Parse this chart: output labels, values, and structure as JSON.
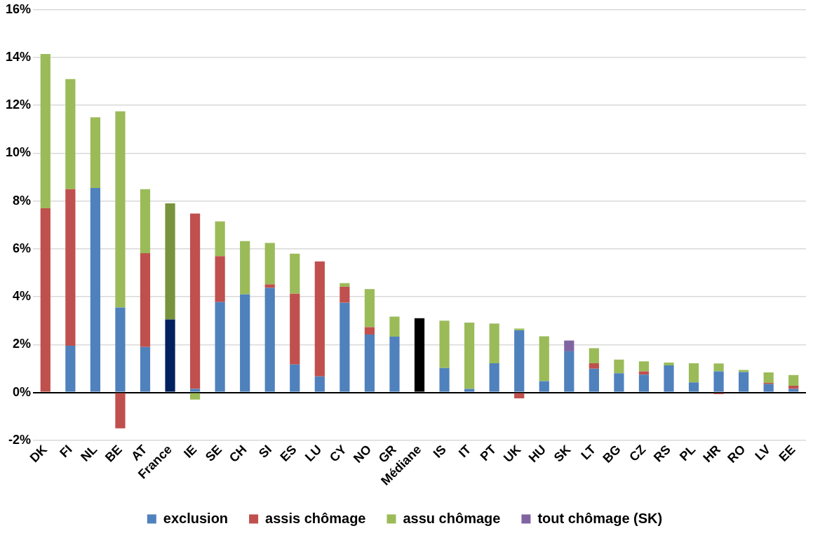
{
  "chart_data": {
    "type": "bar",
    "stacked": true,
    "categories": [
      "DK",
      "FI",
      "NL",
      "BE",
      "AT",
      "France",
      "IE",
      "SE",
      "CH",
      "SI",
      "ES",
      "LU",
      "CY",
      "NO",
      "GR",
      "Médiane",
      "IS",
      "IT",
      "PT",
      "UK",
      "HU",
      "SK",
      "LT",
      "BG",
      "CZ",
      "RS",
      "PL",
      "HR",
      "RO",
      "LV",
      "EE"
    ],
    "series": [
      {
        "name": "exclusion",
        "color": "#4f81bd",
        "colors": [
          "#4f81bd",
          "#4f81bd",
          "#4f81bd",
          "#4f81bd",
          "#4f81bd",
          "#002060",
          "#4f81bd",
          "#4f81bd",
          "#4f81bd",
          "#4f81bd",
          "#4f81bd",
          "#4f81bd",
          "#4f81bd",
          "#4f81bd",
          "#4f81bd",
          "#000000",
          "#4f81bd",
          "#4f81bd",
          "#4f81bd",
          "#4f81bd",
          "#4f81bd",
          "#4f81bd",
          "#4f81bd",
          "#4f81bd",
          "#4f81bd",
          "#4f81bd",
          "#4f81bd",
          "#4f81bd",
          "#4f81bd",
          "#4f81bd",
          "#4f81bd"
        ],
        "values": [
          0,
          1.95,
          8.55,
          3.55,
          1.9,
          3.05,
          0.15,
          3.78,
          4.1,
          4.37,
          1.17,
          0.67,
          3.75,
          2.42,
          2.33,
          3.1,
          1.02,
          0.15,
          1.22,
          2.6,
          0.47,
          1.72,
          0.99,
          0.8,
          0.74,
          1.13,
          0.42,
          0.88,
          0.85,
          0.35,
          0.15
        ]
      },
      {
        "name": "assis chômage",
        "color": "#c0504d",
        "values": [
          7.7,
          6.55,
          0,
          -1.5,
          3.92,
          0,
          7.33,
          1.92,
          0,
          0.15,
          2.96,
          4.81,
          0.67,
          0.31,
          0,
          0,
          0,
          0,
          0,
          -0.25,
          0,
          0,
          0.23,
          0,
          0.14,
          0,
          0,
          -0.07,
          0,
          0.05,
          0.13
        ]
      },
      {
        "name": "assu chômage",
        "color": "#9bbb59",
        "colors": [
          "#9bbb59",
          "#9bbb59",
          "#9bbb59",
          "#9bbb59",
          "#9bbb59",
          "#77933c",
          "#9bbb59",
          "#9bbb59",
          "#9bbb59",
          "#9bbb59",
          "#9bbb59",
          "#9bbb59",
          "#9bbb59",
          "#9bbb59",
          "#9bbb59",
          "#9bbb59",
          "#9bbb59",
          "#9bbb59",
          "#9bbb59",
          "#9bbb59",
          "#9bbb59",
          "#9bbb59",
          "#9bbb59",
          "#9bbb59",
          "#9bbb59",
          "#9bbb59",
          "#9bbb59",
          "#9bbb59",
          "#9bbb59",
          "#9bbb59",
          "#9bbb59"
        ],
        "values": [
          6.45,
          4.6,
          2.95,
          8.2,
          2.68,
          4.85,
          -0.3,
          1.45,
          2.23,
          1.73,
          1.67,
          0,
          0.15,
          1.59,
          0.84,
          0,
          1.98,
          2.77,
          1.66,
          0.07,
          1.88,
          0,
          0.63,
          0.57,
          0.42,
          0.12,
          0.8,
          0.33,
          0.09,
          0.44,
          0.45
        ]
      },
      {
        "name": "tout chômage (SK)",
        "color": "#8064a2",
        "values": [
          0,
          0,
          0,
          0,
          0,
          0,
          0,
          0,
          0,
          0,
          0,
          0,
          0,
          0,
          0,
          0,
          0,
          0,
          0,
          0,
          0,
          0.45,
          0,
          0,
          0,
          0,
          0,
          0,
          0,
          0,
          0
        ]
      }
    ],
    "ylim": [
      -2,
      16
    ],
    "yticks": [
      {
        "value": -2,
        "label": "-2%"
      },
      {
        "value": 0,
        "label": "0%"
      },
      {
        "value": 2,
        "label": "2%"
      },
      {
        "value": 4,
        "label": "4%"
      },
      {
        "value": 6,
        "label": "6%"
      },
      {
        "value": 8,
        "label": "8%"
      },
      {
        "value": 10,
        "label": "10%"
      },
      {
        "value": 12,
        "label": "12%"
      },
      {
        "value": 14,
        "label": "14%"
      },
      {
        "value": 16,
        "label": "16%"
      }
    ],
    "grid": "y",
    "legend": "bottom"
  }
}
